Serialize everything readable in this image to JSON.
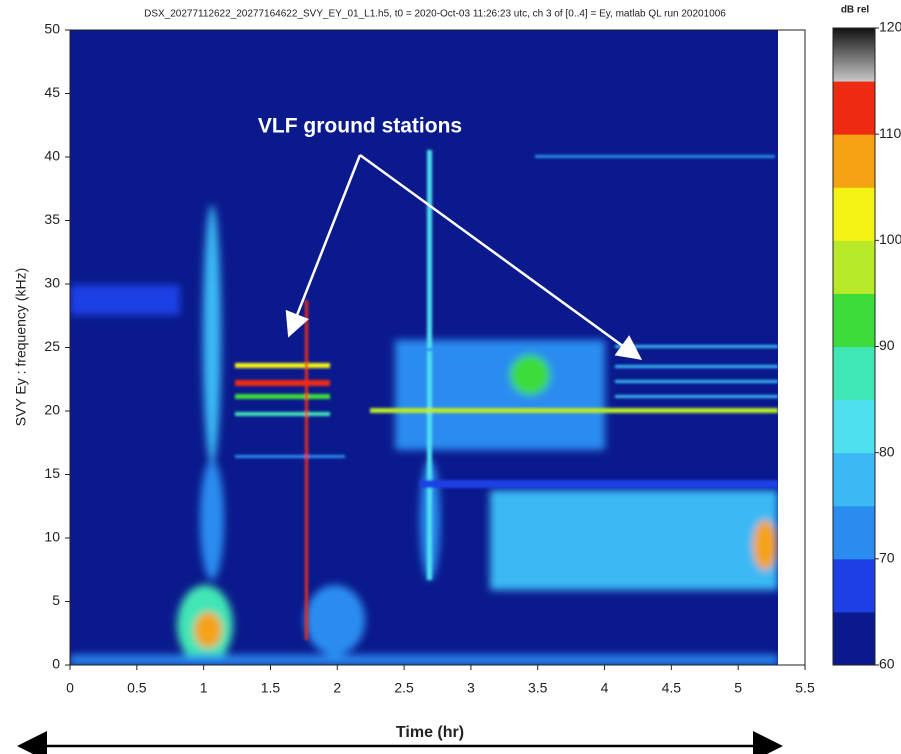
{
  "chart_data": {
    "type": "heatmap",
    "title": "DSX_20277112622_20277164622_SVY_EY_01_L1.h5,  t0 = 2020-Oct-03 11:26:23 utc,  ch 3 of [0..4] = Ey, matlab QL run 20201006",
    "annotation": "VLF ground stations",
    "x_label": "Time (hr)",
    "y_label": "SVY  Ey : frequency (kHz)",
    "xlim": [
      0,
      5.5
    ],
    "xticks": [
      0,
      0.5,
      1,
      1.5,
      2,
      2.5,
      3,
      3.5,
      4,
      4.5,
      5,
      5.5
    ],
    "ylim": [
      0,
      50
    ],
    "yticks": [
      0,
      5,
      10,
      15,
      20,
      25,
      30,
      35,
      40,
      45,
      50
    ],
    "colorbar": {
      "label": "dB rel",
      "lim": [
        60,
        120
      ],
      "ticks": [
        60,
        70,
        80,
        90,
        100,
        110,
        120
      ],
      "colors": [
        "#0a1a8c",
        "#1e3fe6",
        "#2b8cf0",
        "#3ab9f5",
        "#4fe0ef",
        "#3fe6b6",
        "#3ddc3a",
        "#b8ea2a",
        "#f5f316",
        "#f5a312",
        "#ee2a12",
        "#c8c8c8"
      ]
    }
  }
}
